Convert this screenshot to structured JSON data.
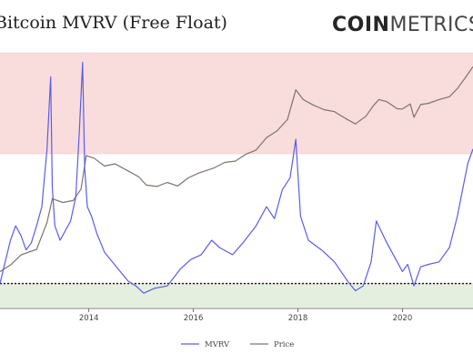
{
  "header": {
    "title": "Bitcoin MVRV (Free Float)",
    "logo_strong": "COIN",
    "logo_light": "METRICS"
  },
  "chart_data": {
    "type": "line",
    "title": "Bitcoin MVRV (Free Float)",
    "xlabel": "",
    "ylabel": "",
    "x_ticks": [
      "2014",
      "2016",
      "2018",
      "2020"
    ],
    "xlim": [
      2012.3,
      2021.35
    ],
    "mvrv_ylim": [
      0.5,
      5.8
    ],
    "price_log10_ylim": [
      0.0,
      4.95
    ],
    "bands": [
      {
        "name": "overvalued",
        "from": 3.7,
        "to": 5.8,
        "color": "#f9dcdc"
      },
      {
        "name": "neutral",
        "from": 1.0,
        "to": 3.7,
        "color": "#ffffff"
      },
      {
        "name": "undervalued",
        "from": 0.5,
        "to": 1.0,
        "color": "#e5efdf"
      }
    ],
    "reference_line": {
      "value": 1.0,
      "style": "dotted",
      "color": "#111111"
    },
    "grid": false,
    "legend_position": "bottom-center",
    "series": [
      {
        "name": "MVRV",
        "color": "#5a5ee8",
        "x": [
          2012.3,
          2012.4,
          2012.5,
          2012.6,
          2012.7,
          2012.8,
          2012.9,
          2013.0,
          2013.1,
          2013.2,
          2013.27,
          2013.3,
          2013.35,
          2013.45,
          2013.55,
          2013.65,
          2013.75,
          2013.82,
          2013.88,
          2013.92,
          2013.97,
          2014.05,
          2014.15,
          2014.3,
          2014.45,
          2014.6,
          2014.75,
          2014.9,
          2015.05,
          2015.25,
          2015.5,
          2015.75,
          2015.95,
          2016.15,
          2016.35,
          2016.5,
          2016.75,
          2016.95,
          2017.2,
          2017.4,
          2017.55,
          2017.7,
          2017.85,
          2017.96,
          2018.05,
          2018.2,
          2018.45,
          2018.7,
          2018.95,
          2019.1,
          2019.25,
          2019.4,
          2019.5,
          2019.7,
          2019.9,
          2020.0,
          2020.1,
          2020.22,
          2020.35,
          2020.5,
          2020.7,
          2020.9,
          2021.05,
          2021.15,
          2021.25,
          2021.35
        ],
        "values": [
          1.0,
          1.45,
          1.9,
          2.2,
          2.0,
          1.7,
          1.85,
          2.2,
          2.6,
          3.8,
          5.3,
          3.0,
          2.2,
          1.9,
          2.1,
          2.3,
          2.8,
          4.2,
          5.6,
          3.4,
          2.6,
          2.4,
          2.05,
          1.65,
          1.45,
          1.25,
          1.05,
          0.95,
          0.8,
          0.9,
          0.95,
          1.3,
          1.5,
          1.6,
          1.9,
          1.75,
          1.6,
          1.85,
          2.2,
          2.6,
          2.35,
          2.95,
          3.2,
          4.0,
          2.4,
          1.9,
          1.7,
          1.45,
          1.05,
          0.85,
          0.95,
          1.45,
          2.3,
          1.85,
          1.45,
          1.25,
          1.4,
          0.95,
          1.35,
          1.4,
          1.45,
          1.75,
          2.4,
          2.95,
          3.5,
          3.8
        ]
      },
      {
        "name": "Price",
        "color": "#7d746c",
        "x": [
          2012.3,
          2012.5,
          2012.7,
          2012.9,
          2013.0,
          2013.2,
          2013.3,
          2013.5,
          2013.7,
          2013.85,
          2013.95,
          2014.1,
          2014.3,
          2014.5,
          2014.7,
          2014.95,
          2015.1,
          2015.3,
          2015.5,
          2015.7,
          2015.9,
          2016.1,
          2016.4,
          2016.6,
          2016.8,
          2017.0,
          2017.2,
          2017.4,
          2017.6,
          2017.8,
          2017.96,
          2018.1,
          2018.3,
          2018.5,
          2018.7,
          2018.9,
          2019.1,
          2019.3,
          2019.45,
          2019.55,
          2019.7,
          2019.9,
          2020.0,
          2020.15,
          2020.22,
          2020.35,
          2020.5,
          2020.7,
          2020.9,
          2021.05,
          2021.2,
          2021.35
        ],
        "values": [
          5.0,
          6.7,
          10.5,
          12.5,
          13.5,
          45.0,
          130.0,
          110.0,
          120.0,
          200.0,
          900.0,
          800.0,
          560.0,
          620.0,
          480.0,
          350.0,
          240.0,
          225.0,
          270.0,
          230.0,
          330.0,
          410.0,
          520.0,
          660.0,
          700.0,
          950.0,
          1150.0,
          2000.0,
          2700.0,
          4500.0,
          17000.0,
          11000.0,
          8500.0,
          7000.0,
          6400.0,
          4800.0,
          3700.0,
          5200.0,
          8500.0,
          11000.0,
          10000.0,
          7300.0,
          7200.0,
          9000.0,
          5000.0,
          8800.0,
          9300.0,
          11000.0,
          12500.0,
          18000.0,
          29000.0,
          48000.0
        ]
      }
    ]
  },
  "legend": [
    {
      "label": "MVRV",
      "color": "#5a5ee8"
    },
    {
      "label": "Price",
      "color": "#7d746c"
    }
  ]
}
